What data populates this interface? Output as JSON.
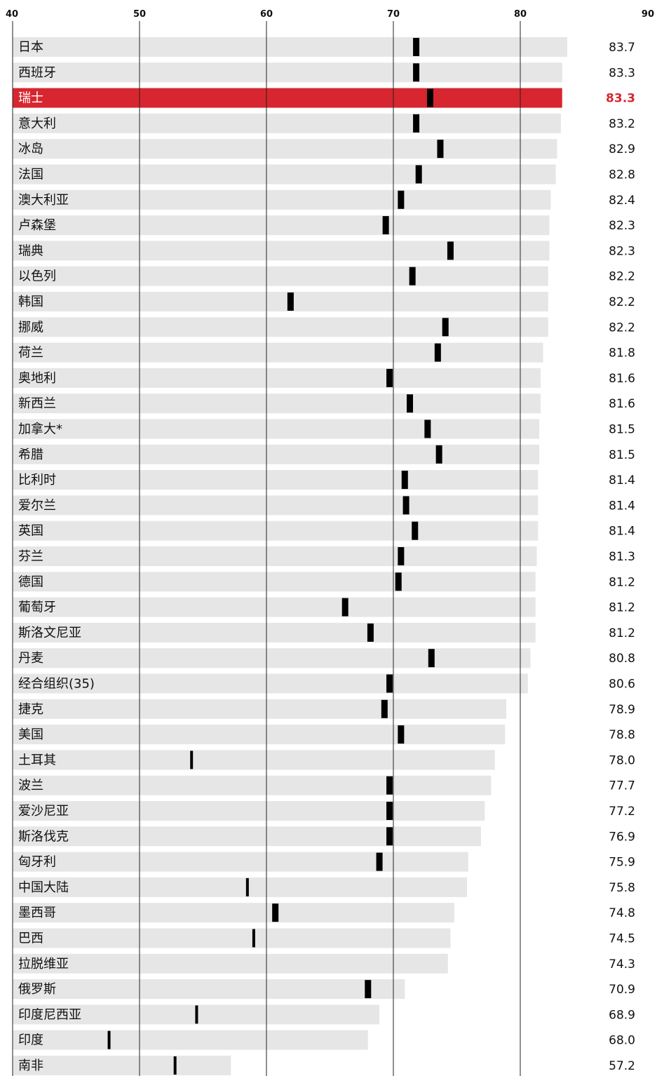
{
  "chart_data": {
    "type": "bar",
    "xlim": [
      40,
      90
    ],
    "ticks": [
      40,
      50,
      60,
      70,
      80,
      90
    ],
    "grid": true,
    "colors": {
      "bar": "#e6e6e6",
      "highlight": "#d7262f",
      "marker": "#000000",
      "text": "#111111",
      "grid": "#222222"
    },
    "highlight_category": "瑞士",
    "categories": [
      "日本",
      "西班牙",
      "瑞士",
      "意大利",
      "冰岛",
      "法国",
      "澳大利亚",
      "卢森堡",
      "瑞典",
      "以色列",
      "韩国",
      "挪威",
      "荷兰",
      "奥地利",
      "新西兰",
      "加拿大*",
      "希腊",
      "比利时",
      "爱尔兰",
      "英国",
      "芬兰",
      "德国",
      "葡萄牙",
      "斯洛文尼亚",
      "丹麦",
      "经合组织(35)",
      "捷克",
      "美国",
      "土耳其",
      "波兰",
      "爱沙尼亚",
      "斯洛伐克",
      "匈牙利",
      "中国大陆",
      "墨西哥",
      "巴西",
      "拉脱维亚",
      "俄罗斯",
      "印度尼西亚",
      "印度",
      "南非"
    ],
    "value_labels": [
      "83.7",
      "83.3",
      "83.3",
      "83.2",
      "82.9",
      "82.8",
      "82.4",
      "82.3",
      "82.3",
      "82.2",
      "82.2",
      "82.2",
      "81.8",
      "81.6",
      "81.6",
      "81.5",
      "81.5",
      "81.4",
      "81.4",
      "81.4",
      "81.3",
      "81.2",
      "81.2",
      "81.2",
      "80.8",
      "80.6",
      "78.9",
      "78.8",
      "78.0",
      "77.7",
      "77.2",
      "76.9",
      "75.9",
      "75.8",
      "74.8",
      "74.5",
      "74.3",
      "70.9",
      "68.9",
      "68.0",
      "57.2"
    ],
    "values": [
      83.7,
      83.3,
      83.3,
      83.2,
      82.9,
      82.8,
      82.4,
      82.3,
      82.3,
      82.2,
      82.2,
      82.2,
      81.8,
      81.6,
      81.6,
      81.5,
      81.5,
      81.4,
      81.4,
      81.4,
      81.3,
      81.2,
      81.2,
      81.2,
      80.8,
      80.6,
      78.9,
      78.8,
      78.0,
      77.7,
      77.2,
      76.9,
      75.9,
      75.8,
      74.8,
      74.5,
      74.3,
      70.9,
      68.9,
      68.0,
      57.2
    ],
    "markers": [
      71.8,
      71.8,
      72.9,
      71.8,
      73.7,
      72.0,
      70.6,
      69.4,
      74.5,
      71.5,
      61.9,
      74.1,
      73.5,
      69.7,
      71.3,
      72.7,
      73.6,
      70.9,
      71.0,
      71.7,
      70.6,
      70.4,
      66.2,
      68.2,
      73.0,
      69.7,
      69.3,
      70.6,
      54.1,
      69.7,
      69.7,
      69.7,
      68.9,
      58.5,
      60.7,
      59.0,
      null,
      68.0,
      54.5,
      47.6,
      52.8
    ]
  }
}
